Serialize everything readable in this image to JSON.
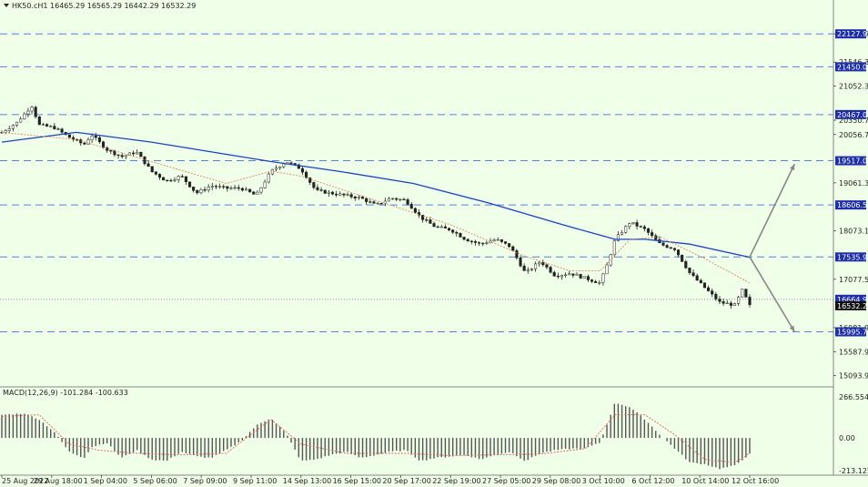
{
  "header": {
    "menu_icon": "triangle-down-icon",
    "text": "HK50.cH1  16465.29 16565.29 16442.29 16532.29"
  },
  "macd_header": {
    "text": "MACD(12,26,9) -101.284 -100.633"
  },
  "colors": {
    "background": "#f0ffe8",
    "candle": "#222222",
    "ma_slow": "#1a3fd1",
    "ma_fast": "#d98a6a",
    "level_line": "#5a7de0",
    "level_label_bg": "#1e2fa8",
    "current_price_bg": "#111111",
    "histogram": "#555555",
    "signal": "#e06060",
    "arrow": "#888888"
  },
  "chart_data": [
    {
      "type": "candlestick",
      "symbol": "HK50.c",
      "timeframe": "H1",
      "ohlc_last": {
        "open": 16465.29,
        "high": 16565.29,
        "low": 16442.29,
        "close": 16532.29
      },
      "ylim": [
        14900,
        22600
      ],
      "y_ticks": [
        22127.93,
        21546.3,
        21052.3,
        20350.7,
        20056.7,
        19061.3,
        18073.1,
        17077.5,
        16081.9,
        15587.9,
        15093.9
      ],
      "y_tick_labels": [
        "22127.93",
        "21546.30",
        "21052.30",
        "20350.70",
        "20056.70",
        "19061.30",
        "18073.10",
        "17077.50",
        "16081.90",
        "15587.90",
        "15093.90"
      ],
      "x_tick_labels": [
        "25 Aug 2022",
        "29 Aug 18:00",
        "1 Sep 04:00",
        "5 Sep 06:00",
        "7 Sep 09:00",
        "9 Sep 11:00",
        "14 Sep 13:00",
        "16 Sep 15:00",
        "20 Sep 17:00",
        "22 Sep 19:00",
        "27 Sep 05:00",
        "29 Sep 08:00",
        "3 Oct 10:00",
        "6 Oct 12:00",
        "10 Oct 14:00",
        "12 Oct 16:00"
      ],
      "levels": [
        {
          "value": 22127.93,
          "label": "22127.93"
        },
        {
          "value": 21450.0,
          "label": "21450.00"
        },
        {
          "value": 20467.0,
          "label": "20467.00"
        },
        {
          "value": 19517.0,
          "label": "19517.00"
        },
        {
          "value": 18606.58,
          "label": "18606.58"
        },
        {
          "value": 17535.97,
          "label": "17535.97"
        },
        {
          "value": 15995.7,
          "label": "15995.70"
        }
      ],
      "current_price": {
        "value": 16532.29,
        "label": "16532.29"
      },
      "dotted_level": {
        "value": 16664.96,
        "label": "16664.96"
      },
      "price_path": [
        [
          0,
          20100
        ],
        [
          2,
          20300
        ],
        [
          4,
          20650
        ],
        [
          5,
          20250
        ],
        [
          7,
          20200
        ],
        [
          9,
          20000
        ],
        [
          11,
          19850
        ],
        [
          12,
          20050
        ],
        [
          14,
          19750
        ],
        [
          16,
          19600
        ],
        [
          18,
          19700
        ],
        [
          20,
          19300
        ],
        [
          22,
          19100
        ],
        [
          24,
          19200
        ],
        [
          26,
          18850
        ],
        [
          28,
          19000
        ],
        [
          30,
          18950
        ],
        [
          32,
          18950
        ],
        [
          34,
          18800
        ],
        [
          36,
          19300
        ],
        [
          38,
          19500
        ],
        [
          40,
          19350
        ],
        [
          42,
          18900
        ],
        [
          44,
          18850
        ],
        [
          46,
          18800
        ],
        [
          48,
          18750
        ],
        [
          50,
          18600
        ],
        [
          52,
          18750
        ],
        [
          54,
          18700
        ],
        [
          56,
          18350
        ],
        [
          58,
          18150
        ],
        [
          60,
          18100
        ],
        [
          62,
          17900
        ],
        [
          64,
          17800
        ],
        [
          66,
          17900
        ],
        [
          68,
          17750
        ],
        [
          70,
          17200
        ],
        [
          72,
          17450
        ],
        [
          74,
          17150
        ],
        [
          76,
          17200
        ],
        [
          78,
          17100
        ],
        [
          80,
          17000
        ],
        [
          81,
          17400
        ],
        [
          82,
          17900
        ],
        [
          84,
          18250
        ],
        [
          86,
          18100
        ],
        [
          88,
          17800
        ],
        [
          90,
          17700
        ],
        [
          92,
          17200
        ],
        [
          94,
          16900
        ],
        [
          96,
          16600
        ],
        [
          98,
          16550
        ],
        [
          99,
          16850
        ],
        [
          100,
          16532
        ]
      ],
      "ma_slow_path": [
        [
          0,
          19900
        ],
        [
          10,
          20100
        ],
        [
          20,
          19900
        ],
        [
          30,
          19650
        ],
        [
          36,
          19500
        ],
        [
          45,
          19300
        ],
        [
          55,
          19050
        ],
        [
          65,
          18650
        ],
        [
          75,
          18200
        ],
        [
          82,
          17900
        ],
        [
          86,
          17900
        ],
        [
          92,
          17800
        ],
        [
          100,
          17530
        ]
      ],
      "ma_fast_path": [
        [
          0,
          20100
        ],
        [
          10,
          19950
        ],
        [
          20,
          19500
        ],
        [
          30,
          19050
        ],
        [
          36,
          19300
        ],
        [
          40,
          19200
        ],
        [
          50,
          18700
        ],
        [
          60,
          18200
        ],
        [
          70,
          17550
        ],
        [
          76,
          17250
        ],
        [
          80,
          17250
        ],
        [
          84,
          17900
        ],
        [
          88,
          17950
        ],
        [
          94,
          17500
        ],
        [
          100,
          17000
        ]
      ],
      "projection_arrows": [
        {
          "from": [
            100,
            17535.97
          ],
          "to": [
            106,
            19450
          ]
        },
        {
          "from": [
            100,
            17535.97
          ],
          "to": [
            106,
            15995.7
          ]
        }
      ]
    },
    {
      "type": "histogram",
      "indicator": "MACD(12,26,9)",
      "main": -101.284,
      "signal": -100.633,
      "ylim": [
        -230,
        290
      ],
      "y_ticks": [
        266.554,
        0.0,
        -213.125
      ],
      "y_tick_labels": [
        "266.554",
        "0.00",
        "-213.125"
      ],
      "hist_path": [
        [
          0,
          150
        ],
        [
          3,
          160
        ],
        [
          5,
          120
        ],
        [
          7,
          40
        ],
        [
          9,
          -90
        ],
        [
          11,
          -130
        ],
        [
          12,
          -60
        ],
        [
          14,
          -30
        ],
        [
          16,
          -130
        ],
        [
          18,
          -80
        ],
        [
          20,
          -140
        ],
        [
          22,
          -150
        ],
        [
          24,
          -90
        ],
        [
          26,
          -120
        ],
        [
          28,
          -130
        ],
        [
          30,
          -80
        ],
        [
          32,
          -20
        ],
        [
          34,
          80
        ],
        [
          36,
          130
        ],
        [
          38,
          30
        ],
        [
          40,
          -150
        ],
        [
          42,
          -140
        ],
        [
          44,
          -110
        ],
        [
          46,
          -90
        ],
        [
          48,
          -130
        ],
        [
          50,
          -110
        ],
        [
          52,
          -90
        ],
        [
          54,
          -80
        ],
        [
          56,
          -150
        ],
        [
          58,
          -130
        ],
        [
          60,
          -120
        ],
        [
          62,
          -110
        ],
        [
          64,
          -140
        ],
        [
          66,
          -110
        ],
        [
          68,
          -90
        ],
        [
          70,
          -150
        ],
        [
          72,
          -100
        ],
        [
          74,
          -80
        ],
        [
          76,
          -70
        ],
        [
          78,
          -70
        ],
        [
          80,
          -30
        ],
        [
          82,
          230
        ],
        [
          84,
          200
        ],
        [
          86,
          120
        ],
        [
          88,
          20
        ],
        [
          90,
          -70
        ],
        [
          92,
          -160
        ],
        [
          94,
          -170
        ],
        [
          96,
          -200
        ],
        [
          98,
          -180
        ],
        [
          100,
          -105
        ]
      ],
      "signal_path": [
        [
          0,
          140
        ],
        [
          5,
          150
        ],
        [
          9,
          -40
        ],
        [
          13,
          -80
        ],
        [
          18,
          -100
        ],
        [
          24,
          -110
        ],
        [
          30,
          -100
        ],
        [
          36,
          120
        ],
        [
          40,
          -40
        ],
        [
          46,
          -100
        ],
        [
          54,
          -100
        ],
        [
          60,
          -115
        ],
        [
          66,
          -110
        ],
        [
          72,
          -105
        ],
        [
          78,
          -70
        ],
        [
          82,
          150
        ],
        [
          86,
          150
        ],
        [
          90,
          20
        ],
        [
          94,
          -140
        ],
        [
          98,
          -160
        ],
        [
          100,
          -100
        ]
      ]
    }
  ]
}
